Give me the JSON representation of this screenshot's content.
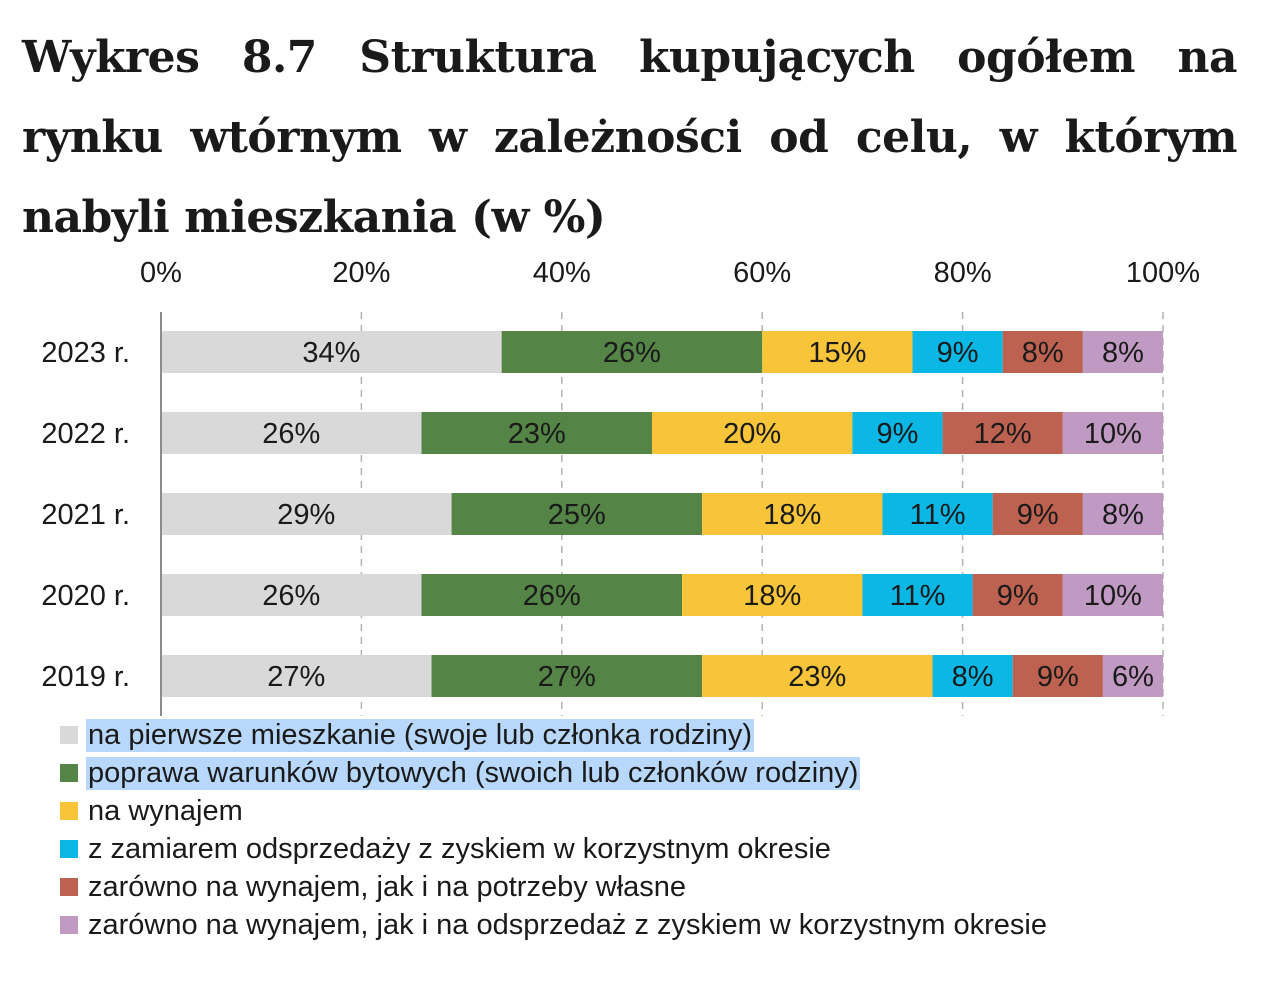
{
  "chart_data": {
    "type": "bar",
    "orientation": "horizontal",
    "stacked": true,
    "title": "Wykres 8.7 Struktura kupujących ogółem na rynku wtórnym w zależności od celu, w którym nabyli mieszkania (w %)",
    "xlabel": "",
    "ylabel": "",
    "xlim": [
      0,
      100
    ],
    "x_ticks": [
      "0%",
      "20%",
      "40%",
      "60%",
      "80%",
      "100%"
    ],
    "grid": "vertical-dashed",
    "legend_position": "bottom",
    "categories": [
      "2023 r.",
      "2022 r.",
      "2021 r.",
      "2020 r.",
      "2019 r."
    ],
    "series": [
      {
        "name": "na pierwsze mieszkanie (swoje lub członka rodziny)",
        "color": "#d9d9d9",
        "highlight": true,
        "values": [
          34,
          26,
          29,
          26,
          27
        ]
      },
      {
        "name": "poprawa warunków bytowych (swoich lub członków rodziny)",
        "color": "#548546",
        "highlight": true,
        "values": [
          26,
          23,
          25,
          26,
          27
        ]
      },
      {
        "name": "na wynajem",
        "color": "#f8c53a",
        "values": [
          15,
          20,
          18,
          18,
          23
        ]
      },
      {
        "name": "z zamiarem odsprzedaży z zyskiem w korzystnym okresie",
        "color": "#0bb7e4",
        "values": [
          9,
          9,
          11,
          11,
          8
        ]
      },
      {
        "name": "zarówno na wynajem, jak i na potrzeby własne",
        "color": "#bd6150",
        "values": [
          8,
          12,
          9,
          9,
          9
        ]
      },
      {
        "name": "zarówno na wynajem, jak i na odsprzedaż z zyskiem w korzystnym okresie",
        "color": "#c09ac2",
        "values": [
          8,
          10,
          8,
          10,
          6
        ]
      }
    ],
    "data_labels": [
      [
        "34%",
        "26%",
        "15%",
        "9%",
        "8%",
        "8%"
      ],
      [
        "26%",
        "23%",
        "20%",
        "9%",
        "12%",
        "10%"
      ],
      [
        "29%",
        "25%",
        "18%",
        "11%",
        "9%",
        "8%"
      ],
      [
        "26%",
        "26%",
        "18%",
        "11%",
        "9%",
        "10%"
      ],
      [
        "27%",
        "27%",
        "23%",
        "8%",
        "9%",
        "6%"
      ]
    ]
  }
}
